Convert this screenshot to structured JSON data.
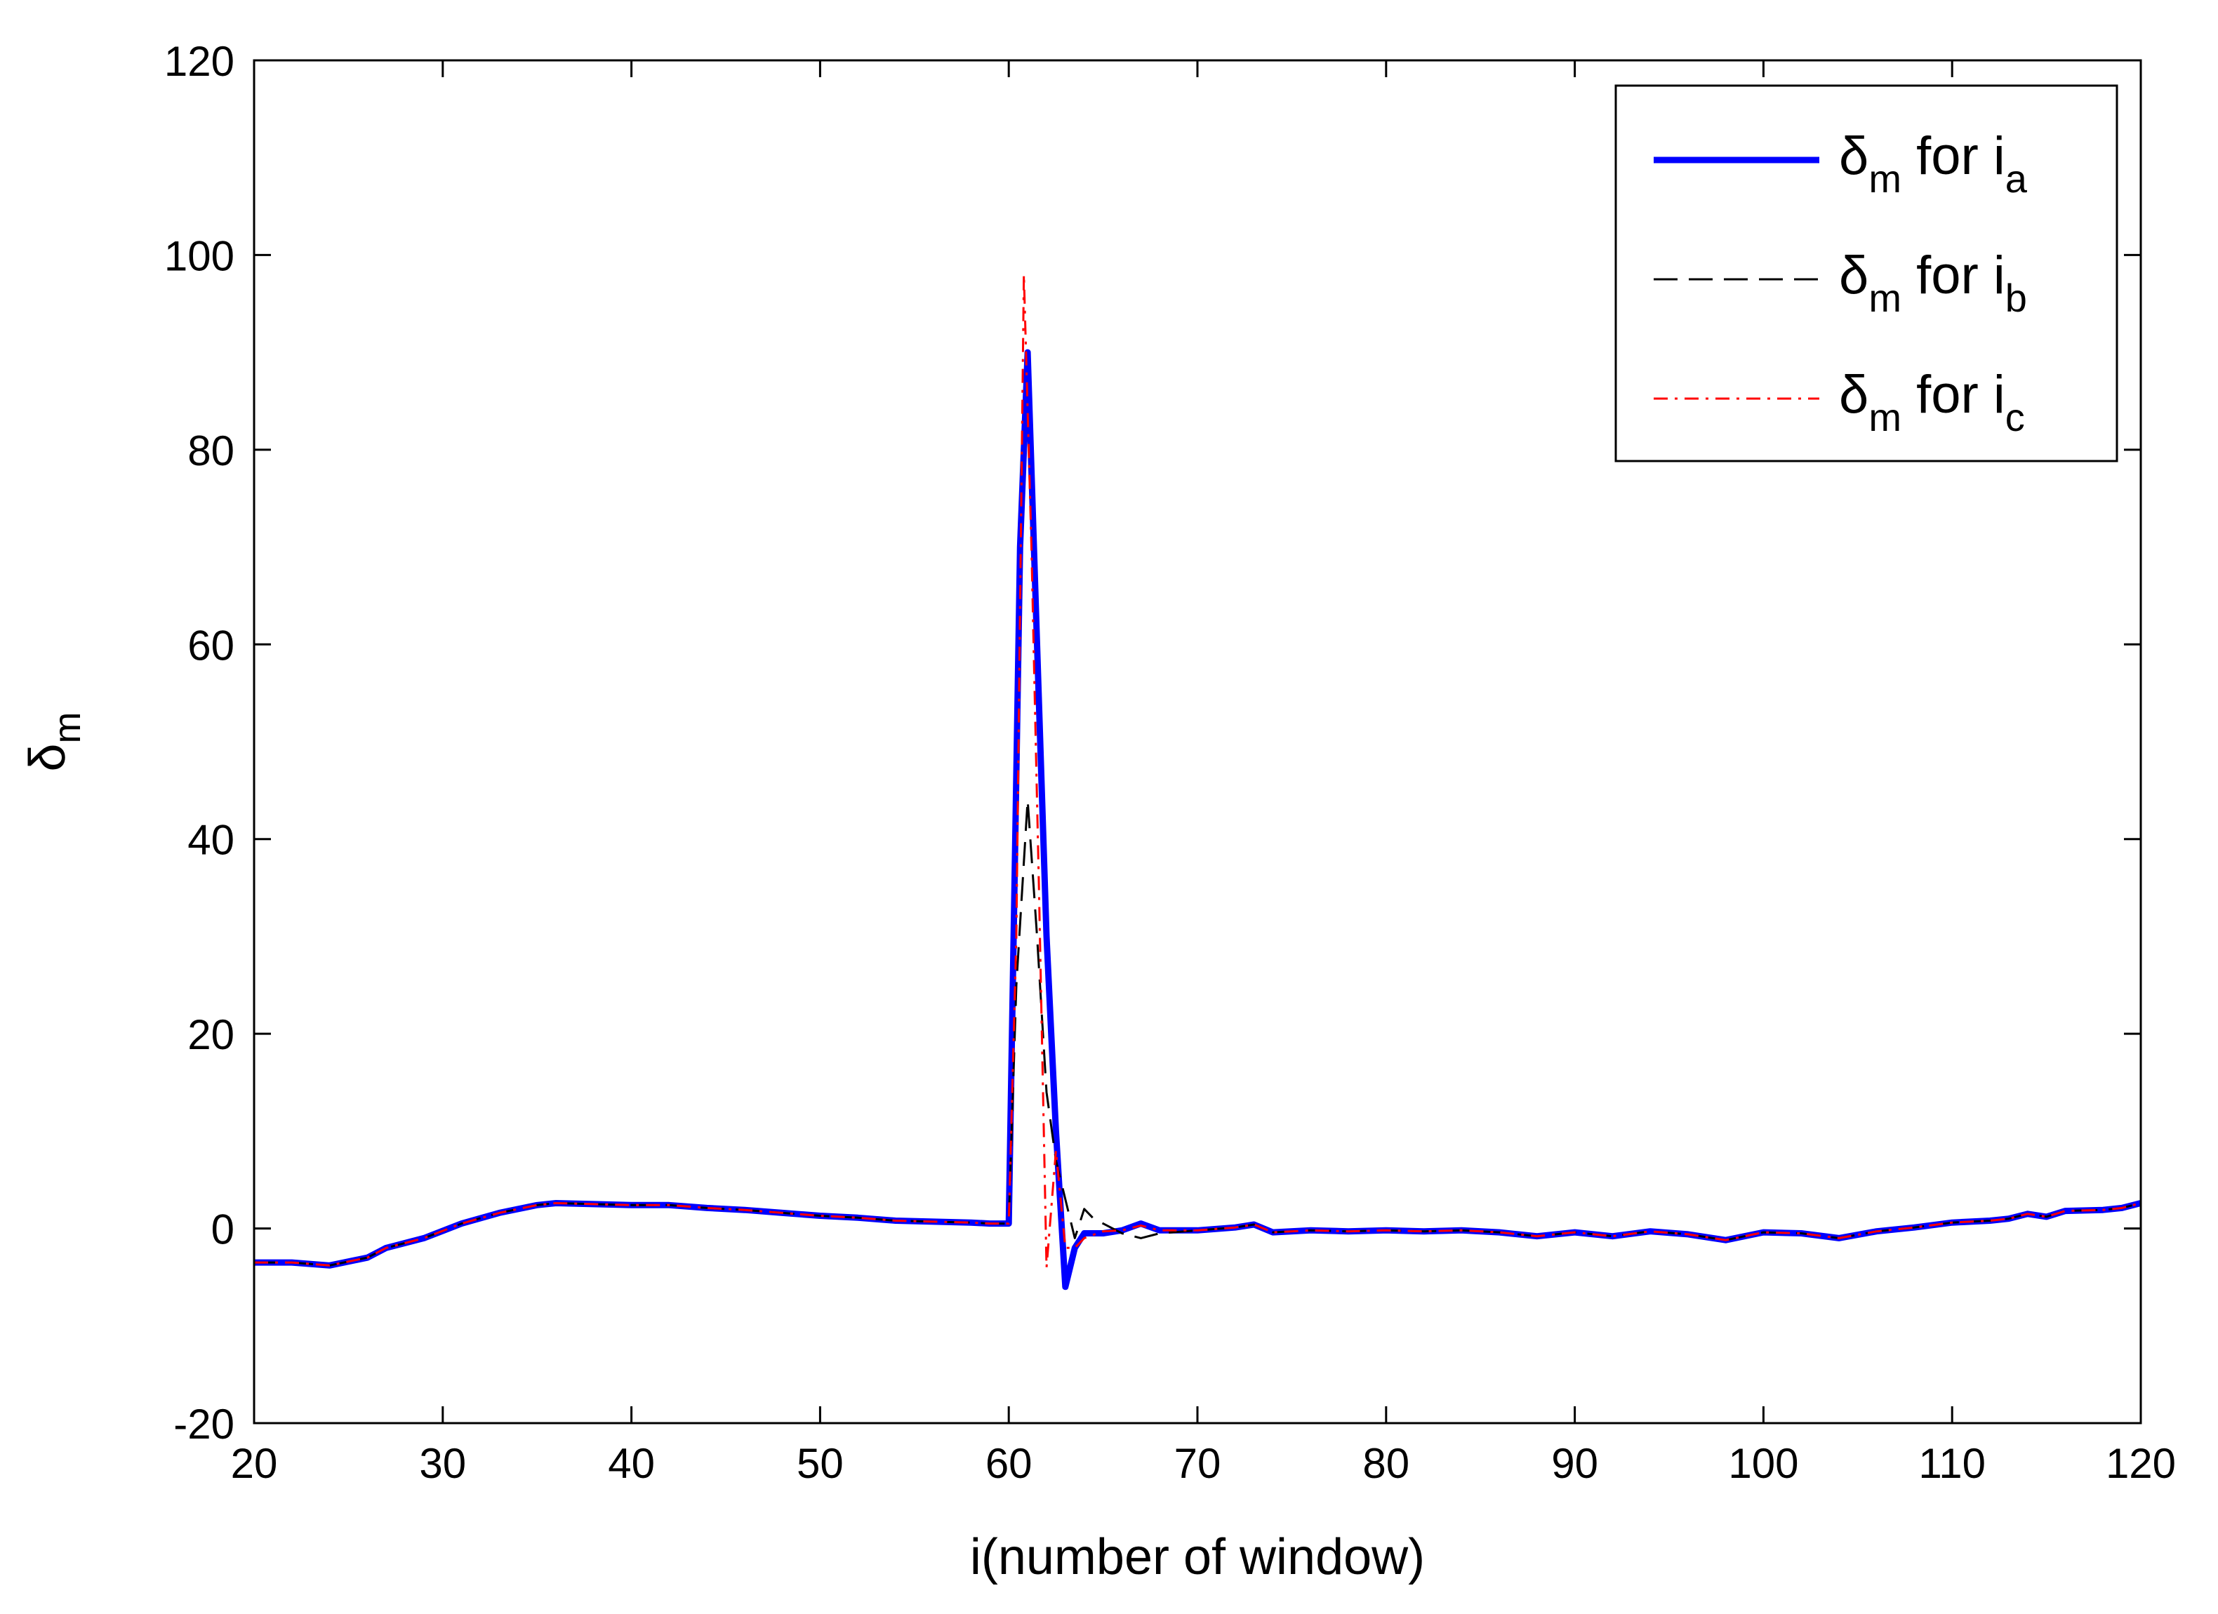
{
  "chart_data": {
    "type": "line",
    "title": "",
    "xlabel": "i(number of window)",
    "ylabel": {
      "main": "δ",
      "sub": "m"
    },
    "xlim": [
      20,
      120
    ],
    "ylim": [
      -20,
      120
    ],
    "xticks": [
      "20",
      "30",
      "40",
      "50",
      "60",
      "70",
      "80",
      "90",
      "100",
      "110",
      "120"
    ],
    "yticks": [
      "-20",
      "0",
      "20",
      "40",
      "60",
      "80",
      "100",
      "120"
    ],
    "grid": false,
    "legend_position": "top-right",
    "series": [
      {
        "name": "δm for ia",
        "legend": {
          "symbol": "δ",
          "sub1": "m",
          "mid": " for i",
          "sub2": "a"
        },
        "color": "#0000ff",
        "style": "solid",
        "x": [
          20,
          22,
          24,
          26,
          27,
          29,
          31,
          33,
          35,
          36,
          38,
          40,
          42,
          44,
          46,
          48,
          50,
          52,
          54,
          56,
          58,
          59,
          60,
          60.3,
          60.6,
          61,
          61.5,
          62,
          62.5,
          63,
          63.5,
          64,
          65,
          66,
          67,
          68,
          70,
          72,
          73,
          74,
          76,
          78,
          80,
          82,
          84,
          86,
          88,
          90,
          92,
          94,
          96,
          98,
          100,
          102,
          104,
          106,
          108,
          110,
          112,
          113,
          114,
          115,
          116,
          118,
          119,
          120
        ],
        "y": [
          -3.5,
          -3.5,
          -3.8,
          -3,
          -2,
          -1,
          0.5,
          1.6,
          2.4,
          2.6,
          2.5,
          2.4,
          2.4,
          2.1,
          1.9,
          1.6,
          1.3,
          1.1,
          0.8,
          0.7,
          0.6,
          0.5,
          0.5,
          35,
          70,
          90,
          60,
          30,
          10,
          -6,
          -2,
          -0.5,
          -0.5,
          -0.2,
          0.5,
          -0.2,
          -0.2,
          0.1,
          0.4,
          -0.4,
          -0.2,
          -0.3,
          -0.2,
          -0.3,
          -0.2,
          -0.4,
          -0.8,
          -0.4,
          -0.8,
          -0.3,
          -0.6,
          -1.2,
          -0.4,
          -0.5,
          -1.0,
          -0.3,
          0.1,
          0.6,
          0.8,
          1.0,
          1.5,
          1.2,
          1.8,
          1.9,
          2.1,
          2.6
        ]
      },
      {
        "name": "δm for ib",
        "legend": {
          "symbol": "δ",
          "sub1": "m",
          "mid": " for i",
          "sub2": "b"
        },
        "color": "#000000",
        "style": "dashed",
        "x": [
          20,
          22,
          24,
          26,
          27,
          29,
          31,
          33,
          35,
          36,
          38,
          40,
          42,
          44,
          46,
          48,
          50,
          52,
          54,
          56,
          58,
          59,
          60,
          60.4,
          61,
          61.5,
          62,
          62.5,
          63,
          63.5,
          64,
          64.5,
          65,
          66,
          67,
          68,
          70,
          72,
          73,
          74,
          76,
          78,
          80,
          82,
          84,
          86,
          88,
          90,
          92,
          94,
          96,
          98,
          100,
          102,
          104,
          106,
          108,
          110,
          112,
          113,
          114,
          115,
          116,
          118,
          119,
          120
        ],
        "y": [
          -3.5,
          -3.5,
          -3.8,
          -3,
          -2,
          -1,
          0.5,
          1.6,
          2.4,
          2.6,
          2.5,
          2.4,
          2.4,
          2.1,
          1.9,
          1.6,
          1.3,
          1.1,
          0.8,
          0.7,
          0.6,
          0.5,
          0.5,
          25,
          44,
          30,
          14,
          7,
          3,
          -1,
          2,
          1,
          0.5,
          -0.5,
          -1,
          -0.5,
          -0.2,
          0.1,
          0.4,
          -0.4,
          -0.2,
          -0.3,
          -0.2,
          -0.3,
          -0.2,
          -0.4,
          -0.8,
          -0.4,
          -0.8,
          -0.3,
          -0.6,
          -1.2,
          -0.4,
          -0.5,
          -1.0,
          -0.3,
          0.1,
          0.6,
          0.8,
          1.0,
          1.5,
          1.2,
          1.8,
          1.9,
          2.1,
          2.6
        ]
      },
      {
        "name": "δm for ic",
        "legend": {
          "symbol": "δ",
          "sub1": "m",
          "mid": " for i",
          "sub2": "c"
        },
        "color": "#ff0000",
        "style": "dashdot",
        "x": [
          20,
          22,
          24,
          26,
          27,
          29,
          31,
          33,
          35,
          36,
          38,
          40,
          42,
          44,
          46,
          48,
          50,
          52,
          54,
          56,
          58,
          59,
          60,
          60.4,
          60.8,
          61.2,
          61.6,
          62,
          62.5,
          63,
          63.5,
          64,
          65,
          66,
          67,
          68,
          70,
          72,
          73,
          74,
          76,
          78,
          80,
          82,
          84,
          86,
          88,
          90,
          92,
          94,
          96,
          98,
          100,
          102,
          104,
          106,
          108,
          110,
          112,
          113,
          114,
          115,
          116,
          118,
          119,
          120
        ],
        "y": [
          -3.5,
          -3.5,
          -3.8,
          -3,
          -2,
          -1,
          0.5,
          1.6,
          2.4,
          2.6,
          2.5,
          2.4,
          2.4,
          2.1,
          1.9,
          1.6,
          1.3,
          1.1,
          0.8,
          0.7,
          0.6,
          0.5,
          0.5,
          30,
          98,
          70,
          35,
          -4,
          8,
          -2,
          -2,
          -1,
          -0.3,
          -0.2,
          0.3,
          -0.2,
          -0.2,
          0.1,
          0.4,
          -0.4,
          -0.2,
          -0.3,
          -0.2,
          -0.3,
          -0.2,
          -0.4,
          -0.8,
          -0.4,
          -0.8,
          -0.3,
          -0.6,
          -1.2,
          -0.4,
          -0.5,
          -1.0,
          -0.3,
          0.1,
          0.6,
          0.8,
          1.0,
          1.5,
          1.2,
          1.8,
          1.9,
          2.1,
          2.6
        ]
      }
    ]
  }
}
